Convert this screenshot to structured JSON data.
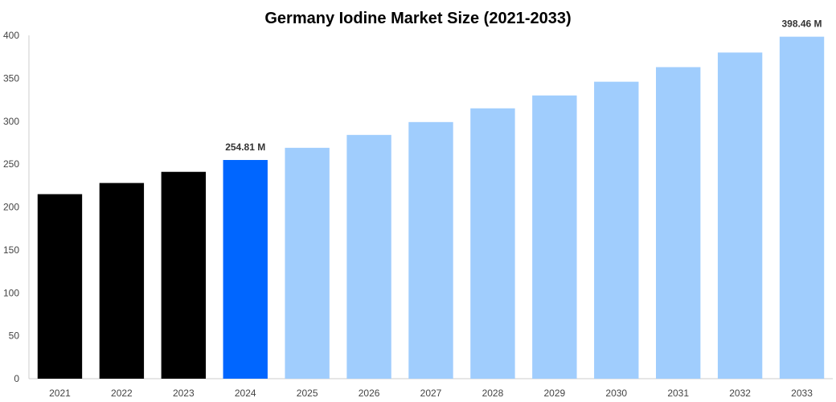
{
  "chart_data": {
    "type": "bar",
    "title": "Germany Iodine Market Size (2021-2033)",
    "xlabel": "",
    "ylabel": "",
    "ylim": [
      0,
      400
    ],
    "yticks": [
      0,
      50,
      100,
      150,
      200,
      250,
      300,
      350,
      400
    ],
    "grid": false,
    "legend": "none",
    "categories": [
      "2021",
      "2022",
      "2023",
      "2024",
      "2025",
      "2026",
      "2027",
      "2028",
      "2029",
      "2030",
      "2031",
      "2032",
      "2033"
    ],
    "values": [
      215,
      228,
      241,
      254.81,
      269,
      284,
      299,
      315,
      330,
      346,
      363,
      380,
      398.46
    ],
    "colors": [
      "#000000",
      "#000000",
      "#000000",
      "#0066ff",
      "#a0cdfd",
      "#a0cdfd",
      "#a0cdfd",
      "#a0cdfd",
      "#a0cdfd",
      "#a0cdfd",
      "#a0cdfd",
      "#a0cdfd",
      "#a0cdfd"
    ],
    "data_labels": [
      {
        "index": 3,
        "text": "254.81 M"
      },
      {
        "index": 12,
        "text": "398.46 M"
      }
    ]
  }
}
